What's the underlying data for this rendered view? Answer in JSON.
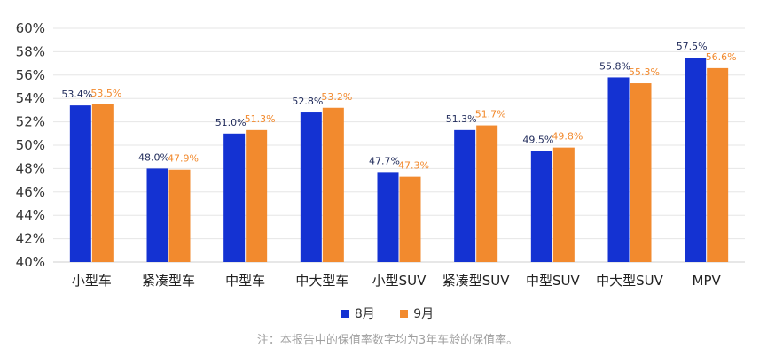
{
  "chart_data": {
    "type": "bar",
    "categories": [
      "小型车",
      "紧凑型车",
      "中型车",
      "中大型车",
      "小型SUV",
      "紧凑型SUV",
      "中型SUV",
      "中大型SUV",
      "MPV"
    ],
    "series": [
      {
        "name": "8月",
        "values": [
          53.4,
          48.0,
          51.0,
          52.8,
          47.7,
          51.3,
          49.5,
          55.8,
          57.5
        ],
        "labels": [
          "53.4%",
          "48.0%",
          "51.0%",
          "52.8%",
          "47.7%",
          "51.3%",
          "49.5%",
          "55.8%",
          "57.5%"
        ],
        "color": "#1432d2",
        "label_color": "#1f2a5a"
      },
      {
        "name": "9月",
        "values": [
          53.5,
          47.9,
          51.3,
          53.2,
          47.3,
          51.7,
          49.8,
          55.3,
          56.6
        ],
        "labels": [
          "53.5%",
          "47.9%",
          "51.3%",
          "53.2%",
          "47.3%",
          "51.7%",
          "49.8%",
          "55.3%",
          "56.6%"
        ],
        "color": "#f28a2e",
        "label_color": "#f28a2e"
      }
    ],
    "ylim": [
      40,
      60
    ],
    "yticks": [
      "40%",
      "42%",
      "44%",
      "46%",
      "48%",
      "50%",
      "52%",
      "54%",
      "56%",
      "58%",
      "60%"
    ],
    "grid": true,
    "legend_position": "bottom"
  },
  "note": "注：本报告中的保值率数字均为3年车龄的保值率。"
}
